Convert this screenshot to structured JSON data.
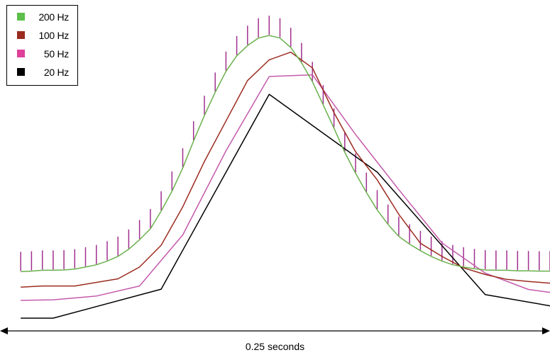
{
  "chart_data": {
    "type": "line",
    "title": "",
    "xlabel": "",
    "ylabel": "",
    "duration_label": "0.25 seconds",
    "legend_position": "top-left",
    "grid": false,
    "x_domain": [
      0,
      1
    ],
    "y_domain": [
      0,
      1
    ],
    "series": [
      {
        "name": "200 Hz",
        "color": "#6ab04c",
        "x": [
          0.02,
          0.04,
          0.06,
          0.08,
          0.1,
          0.12,
          0.14,
          0.16,
          0.18,
          0.2,
          0.22,
          0.24,
          0.26,
          0.28,
          0.3,
          0.32,
          0.34,
          0.36,
          0.38,
          0.4,
          0.42,
          0.44,
          0.46,
          0.48,
          0.5,
          0.52,
          0.54,
          0.56,
          0.58,
          0.6,
          0.62,
          0.64,
          0.66,
          0.68,
          0.7,
          0.72,
          0.74,
          0.76,
          0.78,
          0.8,
          0.82,
          0.84,
          0.86,
          0.88,
          0.9,
          0.92,
          0.94,
          0.96,
          0.98,
          1.0
        ],
        "values": [
          0.162,
          0.164,
          0.167,
          0.167,
          0.168,
          0.171,
          0.178,
          0.186,
          0.199,
          0.215,
          0.24,
          0.273,
          0.311,
          0.373,
          0.442,
          0.523,
          0.617,
          0.706,
          0.787,
          0.86,
          0.914,
          0.95,
          0.976,
          0.985,
          0.976,
          0.943,
          0.89,
          0.824,
          0.743,
          0.662,
          0.578,
          0.505,
          0.438,
          0.377,
          0.327,
          0.285,
          0.258,
          0.235,
          0.215,
          0.199,
          0.186,
          0.178,
          0.172,
          0.168,
          0.167,
          0.167,
          0.165,
          0.165,
          0.164,
          0.164
        ],
        "pulse_markers": true,
        "marker_color": "#a0308f"
      },
      {
        "name": "100 Hz",
        "color": "#9b2b1f",
        "x": [
          0.02,
          0.06,
          0.12,
          0.2,
          0.24,
          0.28,
          0.32,
          0.36,
          0.4,
          0.44,
          0.48,
          0.52,
          0.56,
          0.6,
          0.64,
          0.68,
          0.72,
          0.76,
          0.8,
          0.84,
          0.88,
          0.92,
          0.96,
          1.0
        ],
        "values": [
          0.108,
          0.112,
          0.112,
          0.137,
          0.178,
          0.254,
          0.388,
          0.546,
          0.687,
          0.828,
          0.9,
          0.927,
          0.872,
          0.716,
          0.58,
          0.482,
          0.362,
          0.261,
          0.215,
          0.175,
          0.152,
          0.135,
          0.128,
          0.122
        ]
      },
      {
        "name": "50 Hz",
        "color": "#c45aab",
        "x": [
          0.02,
          0.08,
          0.16,
          0.24,
          0.32,
          0.4,
          0.48,
          0.56,
          0.64,
          0.72,
          0.8,
          0.88,
          0.96,
          1.0
        ],
        "values": [
          0.062,
          0.064,
          0.077,
          0.112,
          0.29,
          0.583,
          0.842,
          0.848,
          0.64,
          0.448,
          0.262,
          0.157,
          0.1,
          0.09
        ]
      },
      {
        "name": "20 Hz",
        "color": "#000000",
        "x": [
          0.02,
          0.08,
          0.28,
          0.48,
          0.68,
          0.88,
          1.0
        ],
        "values": [
          0.0,
          0.0,
          0.101,
          0.78,
          0.509,
          0.082,
          0.043
        ]
      }
    ]
  }
}
